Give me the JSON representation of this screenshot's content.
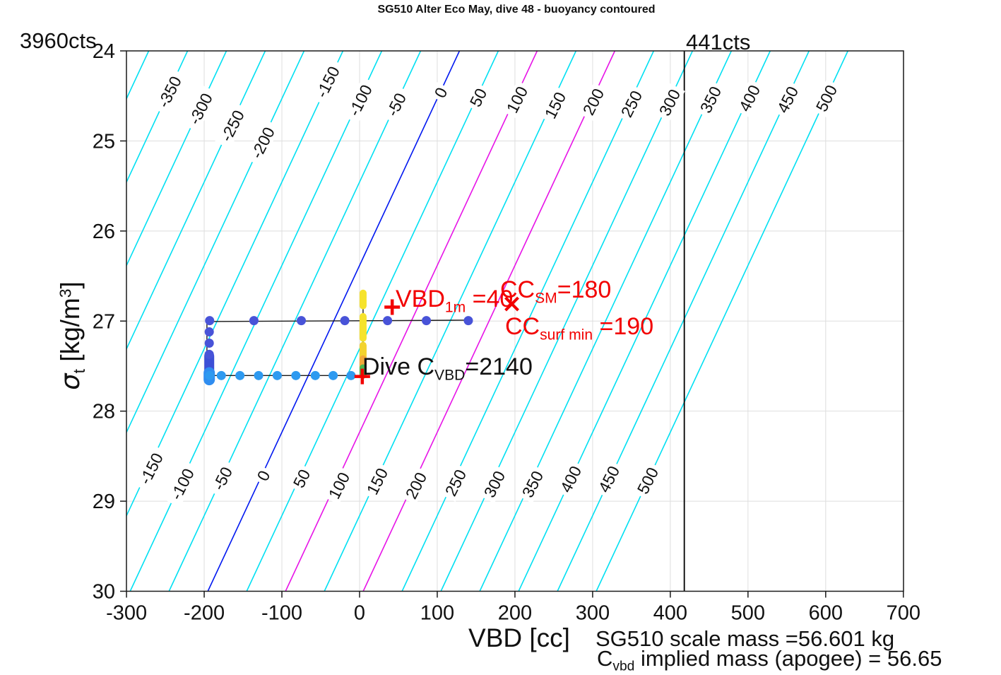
{
  "title": "SG510 Alter Eco May, dive 48 - buoyancy contoured",
  "corner_labels": {
    "left_counts": "3960cts",
    "vline_counts": "441cts"
  },
  "axes": {
    "xlabel": "VBD [cc]",
    "ylabel": {
      "sigma": "σ",
      "sub": "t",
      "mid": " [kg/m",
      "sup": "3",
      "end": "]"
    }
  },
  "annotations": {
    "vbd1m": {
      "pre": "VBD",
      "sub": "1m",
      "post": " =40"
    },
    "cc_sm": {
      "pre": "CC",
      "sub": "SM",
      "post": "=180"
    },
    "cc_surf": {
      "pre": "CC",
      "sub": "surf min",
      "post": " =190"
    },
    "dive": {
      "pre": "Dive C",
      "sub": "VBD",
      "post": "=2140"
    }
  },
  "footer": {
    "line1": "SG510 scale mass =56.601 kg",
    "line2": {
      "pre": "C",
      "sub": "vbd",
      "post": " implied mass (apogee) = 56.65"
    }
  },
  "chart_data": {
    "type": "contour-scatter",
    "title": "SG510 Alter Eco May, dive 48 - buoyancy contoured",
    "xlabel": "VBD [cc]",
    "ylabel": "sigma_t [kg/m^3]",
    "xlim": [
      -300,
      700
    ],
    "ylim_top_to_bottom": [
      24,
      30
    ],
    "xticks": [
      -300,
      -200,
      -100,
      0,
      100,
      200,
      300,
      400,
      500,
      600,
      700
    ],
    "yticks": [
      24,
      25,
      26,
      27,
      28,
      29,
      30
    ],
    "grid": true,
    "contours": {
      "comment": "diagonal buoyancy isolines; line v passes vbd=v-195.3 at sigma=30 and vbd=v+128.6 at sigma=24",
      "values": [
        -400,
        -350,
        -300,
        -250,
        -200,
        -150,
        -100,
        -50,
        0,
        50,
        100,
        150,
        200,
        250,
        300,
        350,
        400,
        450,
        500
      ],
      "vbd_offset_at_sigma30": -195.3,
      "vbd_offset_at_sigma24": 128.6,
      "color_default": "#00E0F2",
      "color_zero": "#0018F0",
      "highlight_values": [
        100,
        200
      ],
      "color_highlight": "#E713E7",
      "labels_upper": [
        [
          -350,
          240,
          130
        ],
        [
          -300,
          284,
          154
        ],
        [
          -250,
          329,
          178
        ],
        [
          -200,
          372,
          202
        ],
        [
          -150,
          464,
          116
        ],
        [
          -100,
          510,
          142
        ],
        [
          -50,
          561,
          148
        ],
        [
          0,
          624,
          131
        ],
        [
          50,
          677,
          138
        ],
        [
          100,
          732,
          141
        ],
        [
          150,
          786,
          149
        ],
        [
          200,
          840,
          144
        ],
        [
          250,
          894,
          147
        ],
        [
          300,
          948,
          145
        ],
        [
          350,
          1006,
          141
        ],
        [
          400,
          1061,
          139
        ],
        [
          450,
          1115,
          141
        ],
        [
          500,
          1170,
          139
        ]
      ],
      "labels_lower": [
        [
          -150,
          214,
          663
        ],
        [
          -100,
          258,
          685
        ],
        [
          -50,
          315,
          677
        ],
        [
          0,
          373,
          673
        ],
        [
          50,
          427,
          677
        ],
        [
          100,
          480,
          687
        ],
        [
          150,
          534,
          681
        ],
        [
          200,
          589,
          687
        ],
        [
          250,
          645,
          683
        ],
        [
          300,
          700,
          685
        ],
        [
          350,
          754,
          685
        ],
        [
          400,
          808,
          678
        ],
        [
          450,
          862,
          678
        ],
        [
          500,
          917,
          680
        ]
      ]
    },
    "vline": {
      "vbd": 418,
      "color": "#000000"
    },
    "trace": {
      "line_color": "#1a1a1a",
      "lines": [
        [
          [
            -196.5,
            27.005
          ],
          [
            140,
            26.99
          ]
        ],
        [
          [
            -196.5,
            27.005
          ],
          [
            -196.5,
            27.605
          ]
        ],
        [
          [
            -196.5,
            27.605
          ],
          [
            3,
            27.605
          ]
        ],
        [
          [
            4.5,
            26.68
          ],
          [
            4.5,
            27.6
          ]
        ]
      ],
      "top_dots": {
        "sigma": 26.995,
        "vbd": [
          -193,
          -136,
          -75,
          -19,
          36,
          86,
          140
        ],
        "color": "#4853d8"
      },
      "left_dots": {
        "vbd": -193.5,
        "sigma": [
          27.12,
          27.245,
          27.37
        ],
        "color": "#4853d8"
      },
      "bottom_dots": {
        "sigma": 27.605,
        "vbd": [
          -193,
          -178,
          -154,
          -130,
          -106,
          -82,
          -57,
          -34,
          -11
        ],
        "color": "#2e9af0"
      },
      "left_cluster": {
        "vbd": -193.5,
        "sigma_from": 27.39,
        "sigma_to": 27.565,
        "color": "#3c4fd6",
        "width": 14
      },
      "corner_cluster": {
        "vbd": -193.5,
        "sigma_from": 27.575,
        "sigma_to": 27.65,
        "color": "#2f8df0",
        "width": 16
      },
      "surface_bars": [
        {
          "vbd": 4.5,
          "from": 26.69,
          "to": 26.745,
          "color": "#f6e32c"
        },
        {
          "vbd": 4.5,
          "from": 26.765,
          "to": 26.83,
          "color": "#f6e32c"
        },
        {
          "vbd": 4.5,
          "from": 26.95,
          "to": 27.03,
          "color": "#f6e32c"
        },
        {
          "vbd": 4.5,
          "from": 27.05,
          "to": 27.19,
          "color": "#f6e32c"
        },
        {
          "vbd": 4.5,
          "from": 27.27,
          "to": 27.42,
          "color": "#f3d32f"
        },
        {
          "vbd": 4.5,
          "from": 27.42,
          "to": 27.52,
          "color": "#f2a93b"
        },
        {
          "vbd": 4.5,
          "from": 27.52,
          "to": 27.6,
          "color": "#4db84d"
        }
      ],
      "red_plus_markers": [
        [
          3.5,
          27.615
        ],
        [
          42,
          26.845
        ]
      ],
      "red_x_markers": [
        [
          196,
          26.81
        ]
      ],
      "marker_red": "#f20000"
    }
  }
}
